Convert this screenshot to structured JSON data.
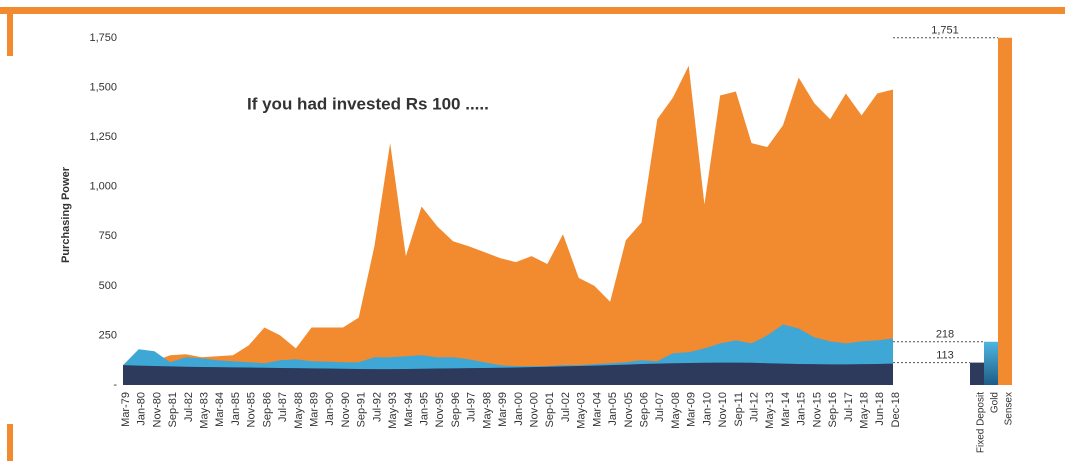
{
  "chart_data": [
    {
      "type": "area",
      "title": "If you had invested Rs 100 .....",
      "y_label": "Purchasing Power",
      "categories": [
        "Mar-79",
        "Jan-80",
        "Nov-80",
        "Sep-81",
        "Jul-82",
        "May-83",
        "Mar-84",
        "Jan-85",
        "Nov-85",
        "Sep-86",
        "Jul-87",
        "May-88",
        "Mar-89",
        "Jan-90",
        "Nov-90",
        "Sep-91",
        "Jul-92",
        "May-93",
        "Mar-94",
        "Jan-95",
        "Nov-95",
        "Sep-96",
        "Jul-97",
        "May-98",
        "Mar-99",
        "Jan-00",
        "Nov-00",
        "Sep-01",
        "Jul-02",
        "May-03",
        "Mar-04",
        "Jan-05",
        "Nov-05",
        "Sep-06",
        "Jul-07",
        "May-08",
        "Mar-09",
        "Jan-10",
        "Nov-10",
        "Sep-11",
        "Jul-12",
        "May-13",
        "Mar-14",
        "Jan-15",
        "Nov-15",
        "Sep-16",
        "Jul-17",
        "May-18",
        "Jun-18",
        "Dec-18"
      ],
      "series": [
        {
          "name": "Sensex",
          "color": "#f28a30",
          "values": [
            100,
            110,
            120,
            150,
            155,
            140,
            145,
            150,
            200,
            290,
            250,
            185,
            290,
            290,
            290,
            340,
            700,
            1220,
            650,
            900,
            800,
            725,
            700,
            670,
            640,
            620,
            650,
            610,
            760,
            540,
            500,
            420,
            730,
            820,
            1340,
            1450,
            1610,
            910,
            1460,
            1480,
            1220,
            1200,
            1310,
            1550,
            1420,
            1340,
            1470,
            1360,
            1470,
            1490
          ]
        },
        {
          "name": "Gold",
          "color": "#3fa7d6",
          "values": [
            100,
            180,
            170,
            115,
            140,
            135,
            125,
            120,
            115,
            110,
            125,
            130,
            120,
            118,
            115,
            115,
            140,
            140,
            145,
            150,
            140,
            140,
            130,
            115,
            100,
            95,
            95,
            95,
            100,
            100,
            105,
            110,
            115,
            125,
            120,
            160,
            165,
            185,
            210,
            225,
            210,
            250,
            305,
            285,
            240,
            220,
            210,
            220,
            225,
            235
          ]
        },
        {
          "name": "Fixed Deposit",
          "color": "#2e3a5c",
          "values": [
            100,
            98,
            96,
            94,
            92,
            91,
            90,
            89,
            88,
            87,
            86,
            85,
            84,
            83,
            82,
            81,
            80,
            80,
            81,
            82,
            83,
            84,
            85,
            86,
            87,
            88,
            90,
            92,
            94,
            96,
            98,
            100,
            103,
            106,
            108,
            110,
            111,
            112,
            113,
            113,
            112,
            110,
            108,
            106,
            105,
            104,
            104,
            105,
            106,
            108
          ]
        }
      ],
      "ylim": [
        0,
        1750
      ],
      "yticks": [
        {
          "value": 0,
          "label": "-"
        },
        250,
        500,
        750,
        {
          "value": 1000,
          "label": "1,000"
        },
        {
          "value": 1250,
          "label": "1,250"
        },
        {
          "value": 1500,
          "label": "1,500"
        },
        {
          "value": 1750,
          "label": "1,750"
        }
      ]
    },
    {
      "type": "bar",
      "categories": [
        "Fixed Deposit",
        "Gold",
        "Sensex"
      ],
      "values": [
        113,
        218,
        1751
      ],
      "value_labels": [
        "113",
        "218",
        "1,751"
      ],
      "colors": [
        "#2e3a5c",
        "#3fa7d6",
        "#f28a30"
      ],
      "ylim": [
        0,
        1750
      ]
    }
  ]
}
